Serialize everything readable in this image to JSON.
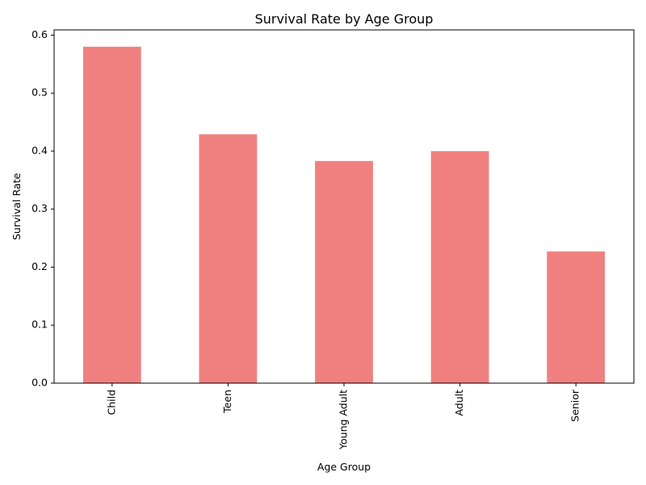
{
  "chart_data": {
    "type": "bar",
    "title": "Survival Rate by Age Group",
    "xlabel": "Age Group",
    "ylabel": "Survival Rate",
    "categories": [
      "Child",
      "Teen",
      "Young Adult",
      "Adult",
      "Senior"
    ],
    "values": [
      0.58,
      0.429,
      0.383,
      0.4,
      0.227
    ],
    "ylim": [
      0,
      0.609
    ],
    "yticks": [
      0.0,
      0.1,
      0.2,
      0.3,
      0.4,
      0.5,
      0.6
    ],
    "ytick_labels": [
      "0.0",
      "0.1",
      "0.2",
      "0.3",
      "0.4",
      "0.5",
      "0.6"
    ],
    "xtick_rotation": "vertical",
    "bar_color": "#f08080",
    "grid": false,
    "legend": "none"
  }
}
